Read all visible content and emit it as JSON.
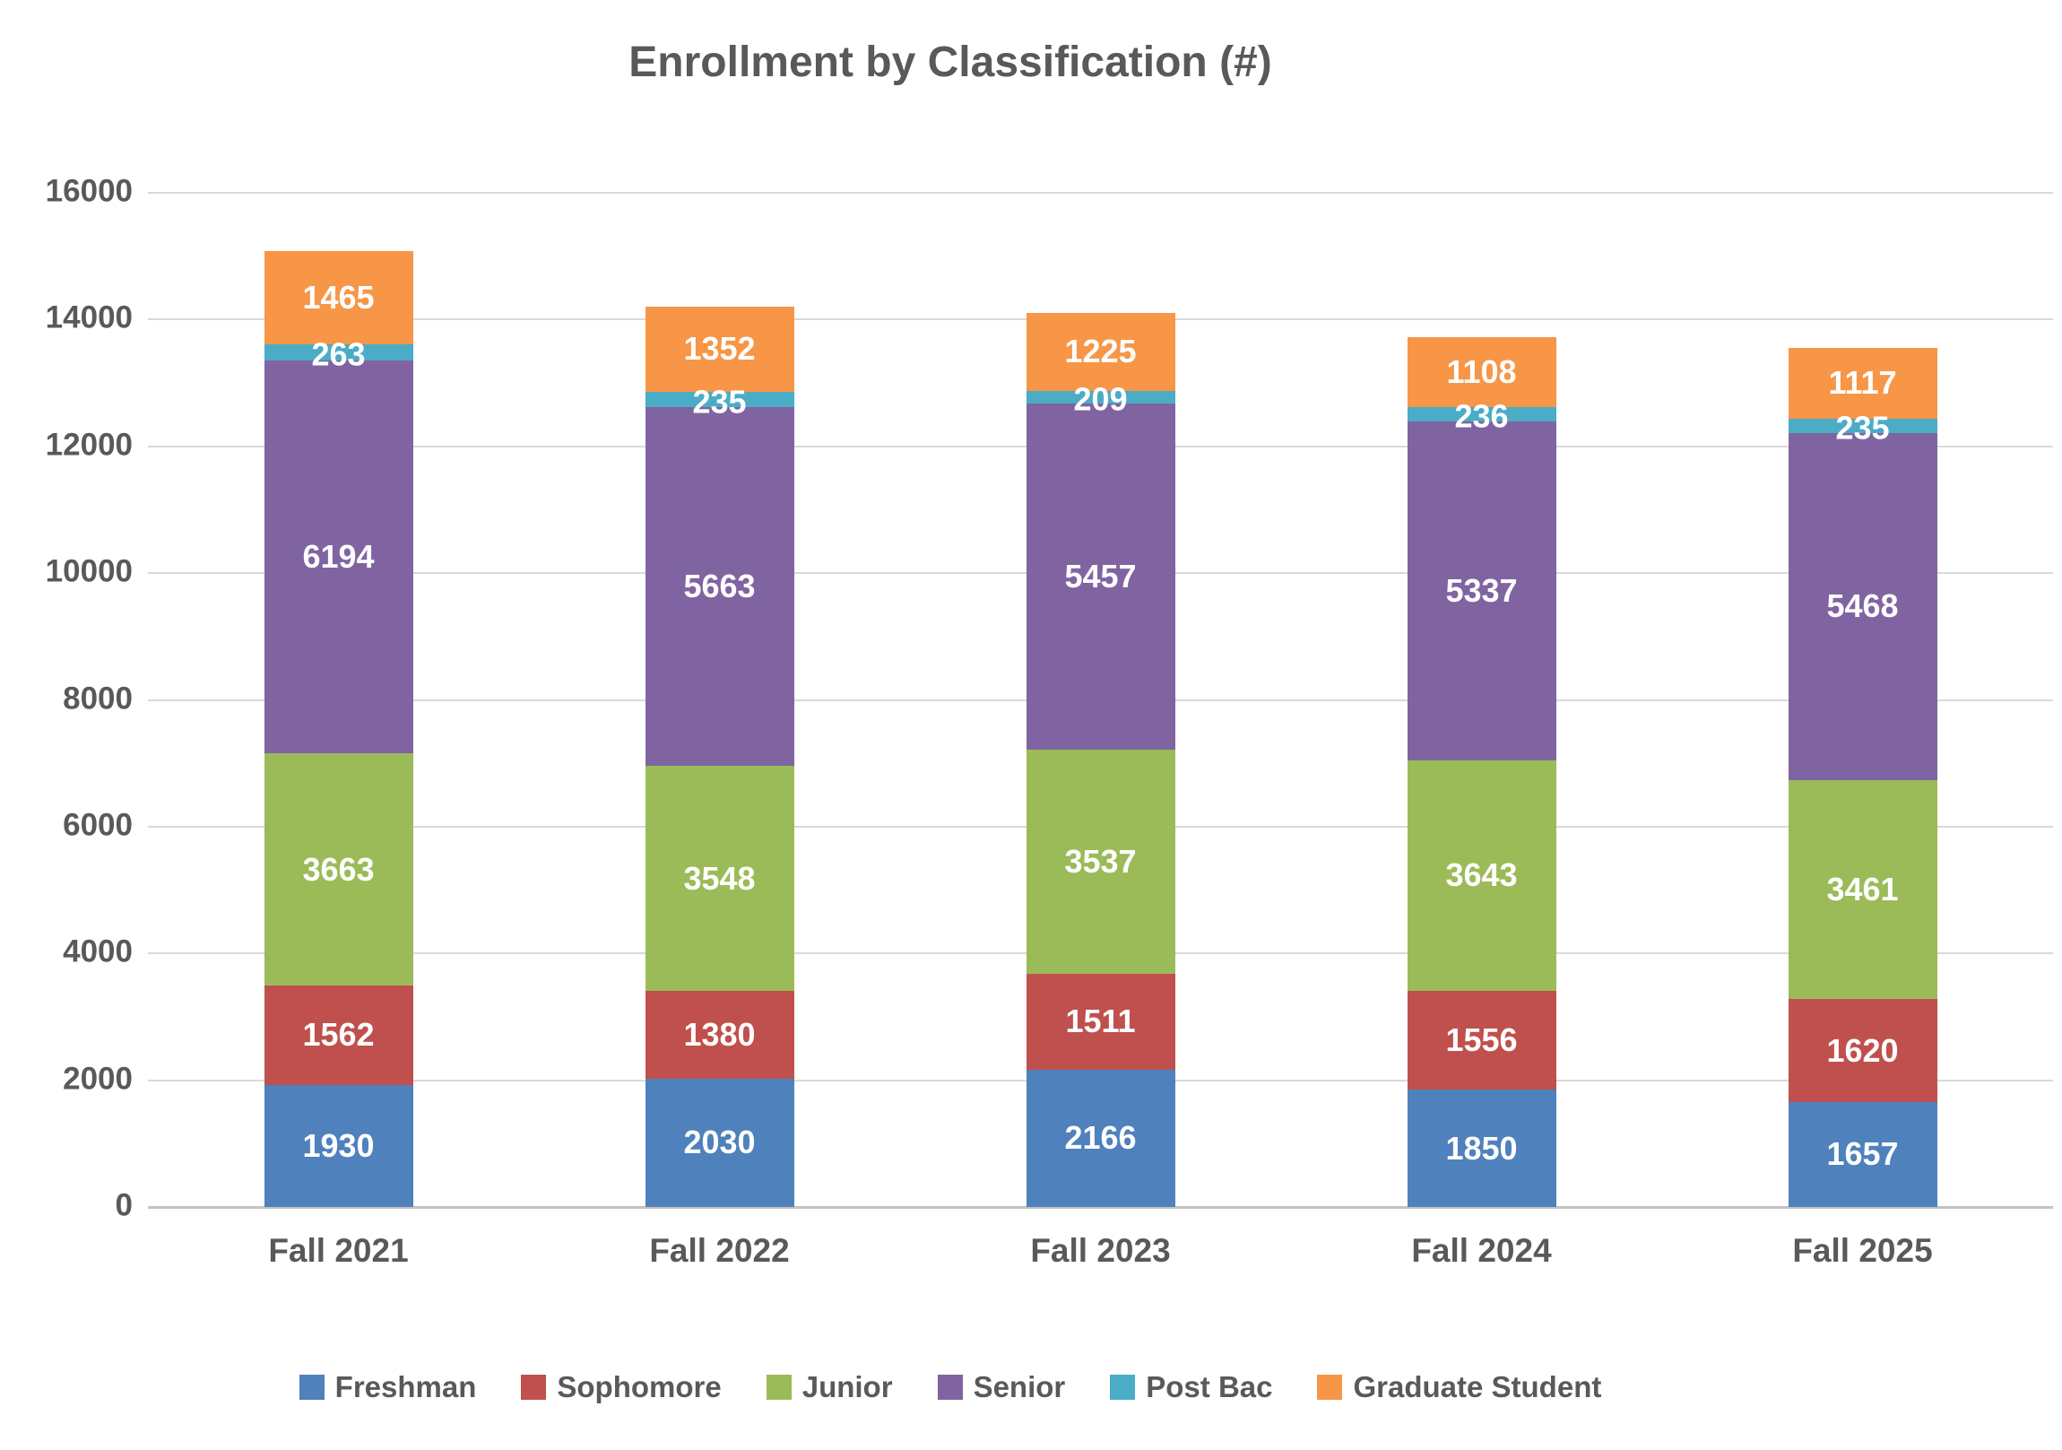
{
  "title": "Enrollment by Classification (#)",
  "chart_data": {
    "type": "bar",
    "stacked": true,
    "title": "Enrollment by Classification (#)",
    "categories": [
      "Fall 2021",
      "Fall 2022",
      "Fall 2023",
      "Fall 2024",
      "Fall 2025"
    ],
    "series": [
      {
        "name": "Freshman",
        "color": "#4F81BD",
        "values": [
          1930,
          2030,
          2166,
          1850,
          1657
        ]
      },
      {
        "name": "Sophomore",
        "color": "#C0504D",
        "values": [
          1562,
          1380,
          1511,
          1556,
          1620
        ]
      },
      {
        "name": "Junior",
        "color": "#9BBB59",
        "values": [
          3663,
          3548,
          3537,
          3643,
          3461
        ]
      },
      {
        "name": "Senior",
        "color": "#8064A2",
        "values": [
          6194,
          5663,
          5457,
          5337,
          5468
        ]
      },
      {
        "name": "Post Bac",
        "color": "#4BACC6",
        "values": [
          263,
          235,
          209,
          236,
          235
        ]
      },
      {
        "name": "Graduate Student",
        "color": "#F79646",
        "values": [
          1465,
          1352,
          1225,
          1108,
          1117
        ]
      }
    ],
    "totals": [
      15077,
      14208,
      14105,
      13730,
      13558
    ],
    "xlabel": "",
    "ylabel": "",
    "ylim": [
      0,
      16000
    ],
    "ytick_step": 2000,
    "yticks": [
      0,
      2000,
      4000,
      6000,
      8000,
      10000,
      12000,
      14000,
      16000
    ],
    "grid": "horizontal",
    "legend_position": "bottom",
    "data_labels": "inside-center-white"
  },
  "style": {
    "text_color": "#595959",
    "data_label_color": "#FFFFFF",
    "gridline_color": "#D9D9D9",
    "axis_line_color": "#C3C3C3",
    "background_color": "#FFFFFF"
  }
}
